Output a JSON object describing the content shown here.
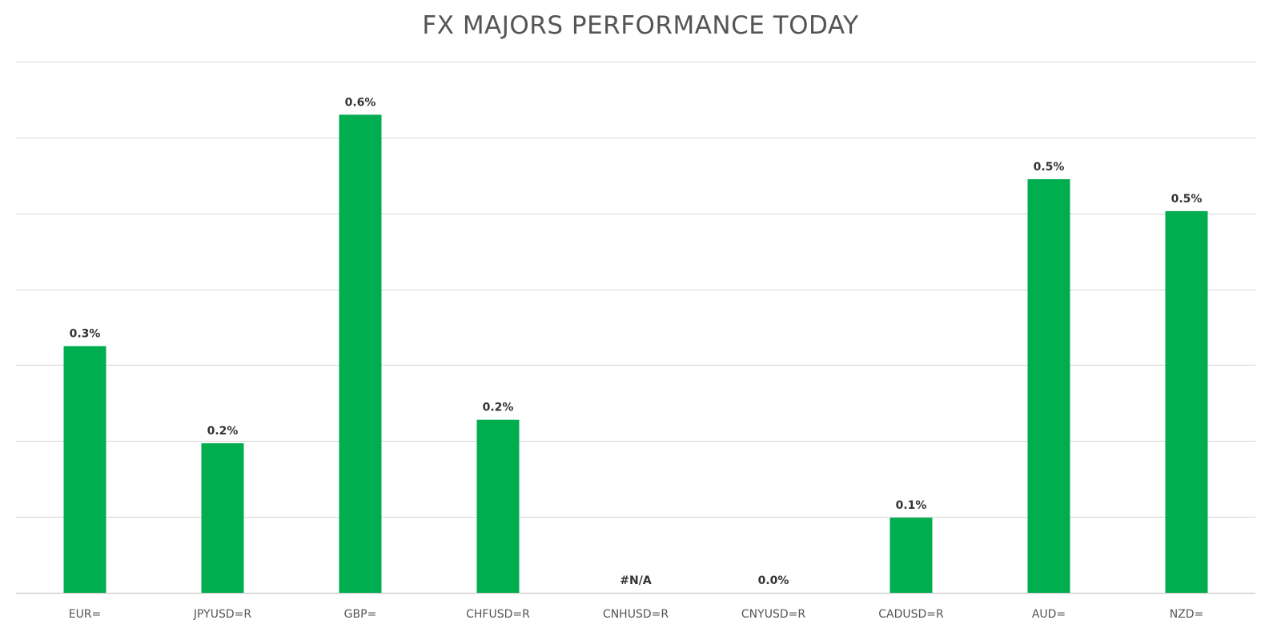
{
  "chart_data": {
    "type": "bar",
    "title": "FX MAJORS PERFORMANCE TODAY",
    "xlabel": "",
    "ylabel": "",
    "categories": [
      "EUR=",
      "JPYUSD=R",
      "GBP=",
      "CHFUSD=R",
      "CNHUSD=R",
      "CNYUSD=R",
      "CADUSD=R",
      "AUD=",
      "NZD="
    ],
    "values": [
      0.325,
      0.197,
      0.63,
      0.228,
      null,
      0.0,
      0.099,
      0.545,
      0.503
    ],
    "data_labels": [
      "0.3%",
      "0.2%",
      "0.6%",
      "0.2%",
      "#N/A",
      "0.0%",
      "0.1%",
      "0.5%",
      "0.5%"
    ],
    "units": "%",
    "ylim": [
      0,
      0.7
    ],
    "y_grid_step": 0.1,
    "grid": true,
    "legend": "none",
    "bar_color": "#00ad4f"
  }
}
